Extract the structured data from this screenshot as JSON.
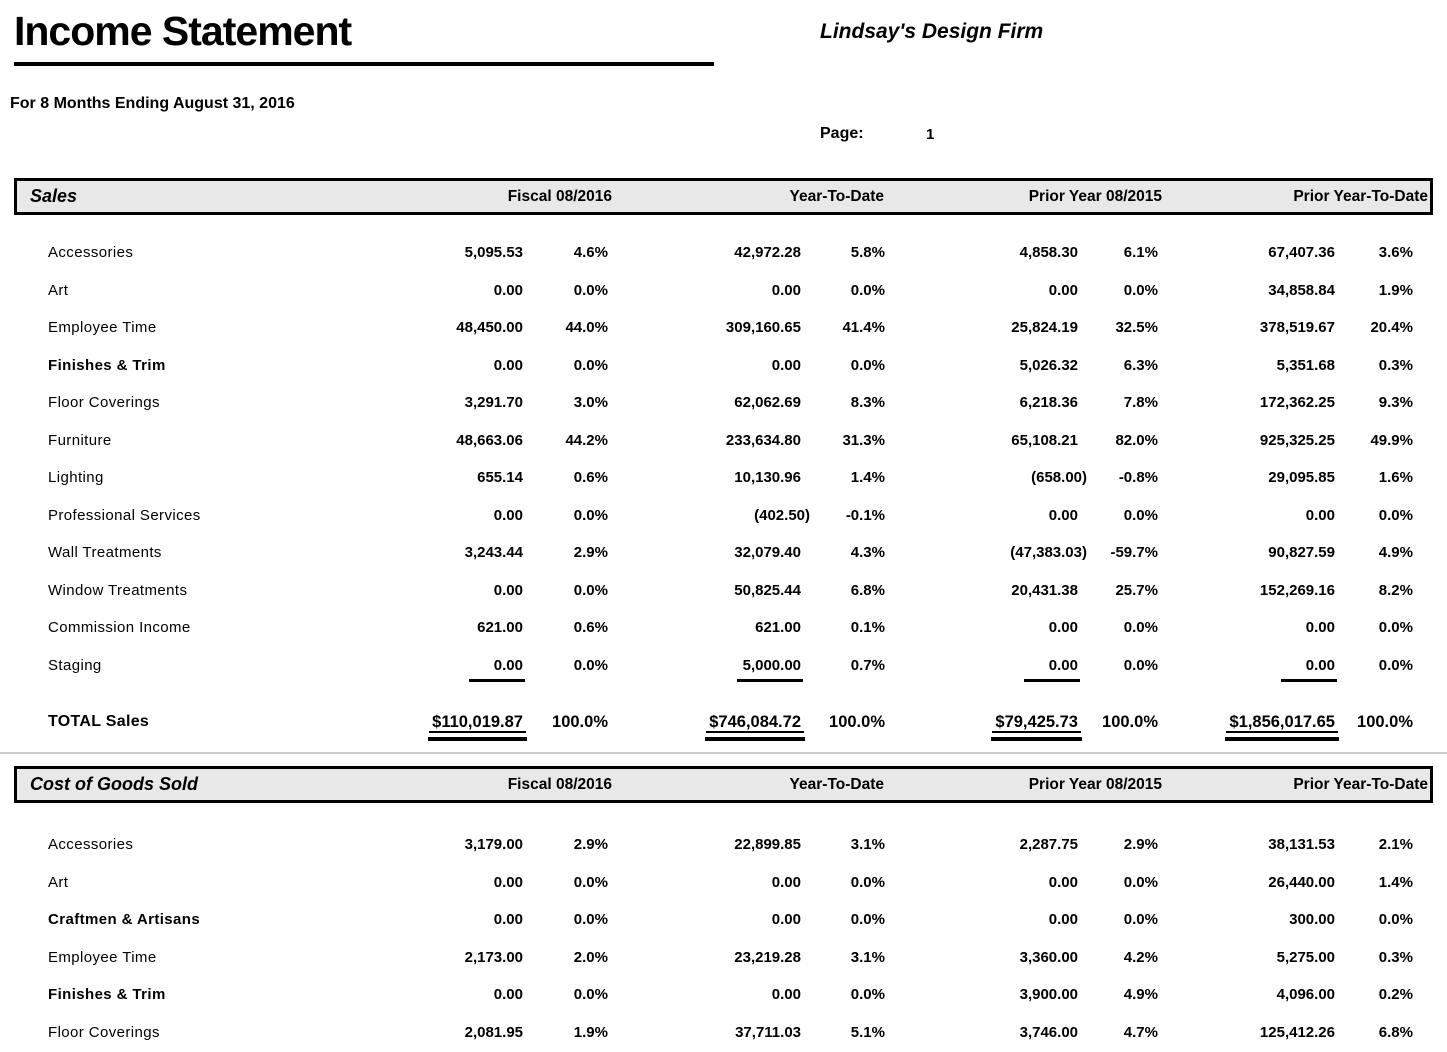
{
  "report": {
    "title": "Income Statement",
    "company": "Lindsay's Design Firm",
    "period": "For 8 Months Ending August 31, 2016",
    "page_label": "Page:",
    "page_number": "1"
  },
  "columns": [
    "Fiscal 08/2016",
    "Year-To-Date",
    "Prior Year 08/2015",
    "Prior Year-To-Date"
  ],
  "sections": [
    {
      "name": "Sales",
      "rows": [
        {
          "label": "Accessories",
          "values": [
            "5,095.53",
            "4.6%",
            "42,972.28",
            "5.8%",
            "4,858.30",
            "6.1%",
            "67,407.36",
            "3.6%"
          ]
        },
        {
          "label": "Art",
          "values": [
            "0.00",
            "0.0%",
            "0.00",
            "0.0%",
            "0.00",
            "0.0%",
            "34,858.84",
            "1.9%"
          ]
        },
        {
          "label": "Employee Time",
          "values": [
            "48,450.00",
            "44.0%",
            "309,160.65",
            "41.4%",
            "25,824.19",
            "32.5%",
            "378,519.67",
            "20.4%"
          ]
        },
        {
          "label": "Finishes & Trim",
          "bold": true,
          "values": [
            "0.00",
            "0.0%",
            "0.00",
            "0.0%",
            "5,026.32",
            "6.3%",
            "5,351.68",
            "0.3%"
          ]
        },
        {
          "label": "Floor Coverings",
          "values": [
            "3,291.70",
            "3.0%",
            "62,062.69",
            "8.3%",
            "6,218.36",
            "7.8%",
            "172,362.25",
            "9.3%"
          ]
        },
        {
          "label": "Furniture",
          "values": [
            "48,663.06",
            "44.2%",
            "233,634.80",
            "31.3%",
            "65,108.21",
            "82.0%",
            "925,325.25",
            "49.9%"
          ]
        },
        {
          "label": "Lighting",
          "values": [
            "655.14",
            "0.6%",
            "10,130.96",
            "1.4%",
            "(658.00)",
            "-0.8%",
            "29,095.85",
            "1.6%"
          ]
        },
        {
          "label": "Professional Services",
          "values": [
            "0.00",
            "0.0%",
            "(402.50)",
            "-0.1%",
            "0.00",
            "0.0%",
            "0.00",
            "0.0%"
          ]
        },
        {
          "label": "Wall Treatments",
          "values": [
            "3,243.44",
            "2.9%",
            "32,079.40",
            "4.3%",
            "(47,383.03)",
            "-59.7%",
            "90,827.59",
            "4.9%"
          ]
        },
        {
          "label": "Window Treatments",
          "values": [
            "0.00",
            "0.0%",
            "50,825.44",
            "6.8%",
            "20,431.38",
            "25.7%",
            "152,269.16",
            "8.2%"
          ]
        },
        {
          "label": "Commission Income",
          "values": [
            "621.00",
            "0.6%",
            "621.00",
            "0.1%",
            "0.00",
            "0.0%",
            "0.00",
            "0.0%"
          ]
        },
        {
          "label": "Staging",
          "underline_amounts": true,
          "values": [
            "0.00",
            "0.0%",
            "5,000.00",
            "0.7%",
            "0.00",
            "0.0%",
            "0.00",
            "0.0%"
          ]
        }
      ],
      "total": {
        "label": "TOTAL Sales",
        "values": [
          "$110,019.87",
          "100.0%",
          "$746,084.72",
          "100.0%",
          "$79,425.73",
          "100.0%",
          "$1,856,017.65",
          "100.0%"
        ]
      }
    },
    {
      "name": "Cost of Goods Sold",
      "rows": [
        {
          "label": "Accessories",
          "values": [
            "3,179.00",
            "2.9%",
            "22,899.85",
            "3.1%",
            "2,287.75",
            "2.9%",
            "38,131.53",
            "2.1%"
          ]
        },
        {
          "label": "Art",
          "values": [
            "0.00",
            "0.0%",
            "0.00",
            "0.0%",
            "0.00",
            "0.0%",
            "26,440.00",
            "1.4%"
          ]
        },
        {
          "label": "Craftmen & Artisans",
          "bold": true,
          "values": [
            "0.00",
            "0.0%",
            "0.00",
            "0.0%",
            "0.00",
            "0.0%",
            "300.00",
            "0.0%"
          ]
        },
        {
          "label": "Employee Time",
          "values": [
            "2,173.00",
            "2.0%",
            "23,219.28",
            "3.1%",
            "3,360.00",
            "4.2%",
            "5,275.00",
            "0.3%"
          ]
        },
        {
          "label": "Finishes & Trim",
          "bold": true,
          "values": [
            "0.00",
            "0.0%",
            "0.00",
            "0.0%",
            "3,900.00",
            "4.9%",
            "4,096.00",
            "0.2%"
          ]
        },
        {
          "label": "Floor Coverings",
          "values": [
            "2,081.95",
            "1.9%",
            "37,711.03",
            "5.1%",
            "3,746.00",
            "4.7%",
            "125,412.26",
            "6.8%"
          ]
        }
      ]
    }
  ],
  "colors": {
    "band_background": "#e8e8e8",
    "text": "#000000",
    "separator": "#cccccc"
  }
}
